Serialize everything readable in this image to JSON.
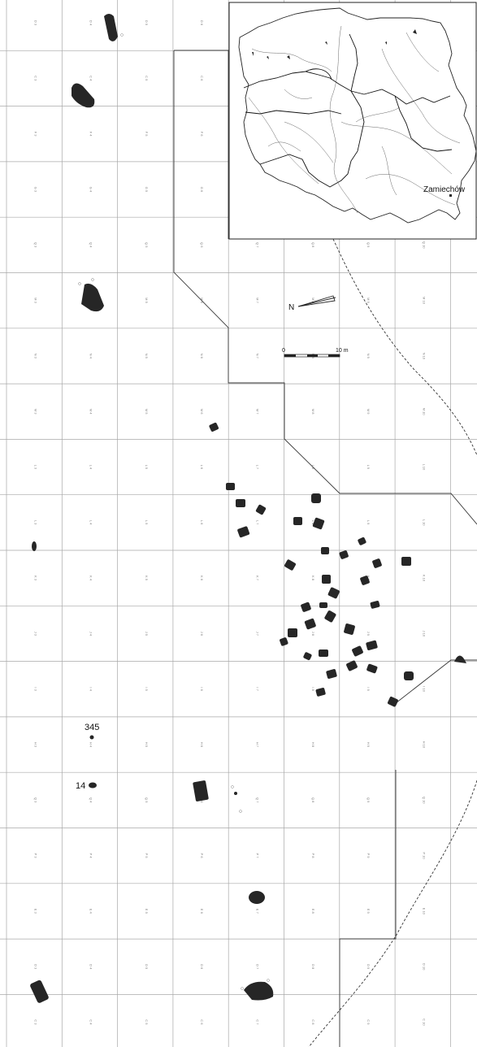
{
  "grid": {
    "rows": [
      "D",
      "C",
      "F",
      "G",
      "Q",
      "M",
      "N",
      "M",
      "L",
      "L",
      "K",
      "J",
      "I",
      "H",
      "Q",
      "P",
      "E",
      "D",
      "C"
    ],
    "cols": [
      "2",
      "3",
      "4",
      "5",
      "6",
      "7",
      "8",
      "9",
      "10"
    ]
  },
  "feature_labels": [
    {
      "id": "f345",
      "text": "345"
    },
    {
      "id": "f14",
      "text": "14"
    }
  ],
  "north": {
    "label": "N"
  },
  "scale": {
    "start_label": "0",
    "end_label": "10 m"
  },
  "inset": {
    "title": "",
    "place_label": "Zamiechów"
  }
}
